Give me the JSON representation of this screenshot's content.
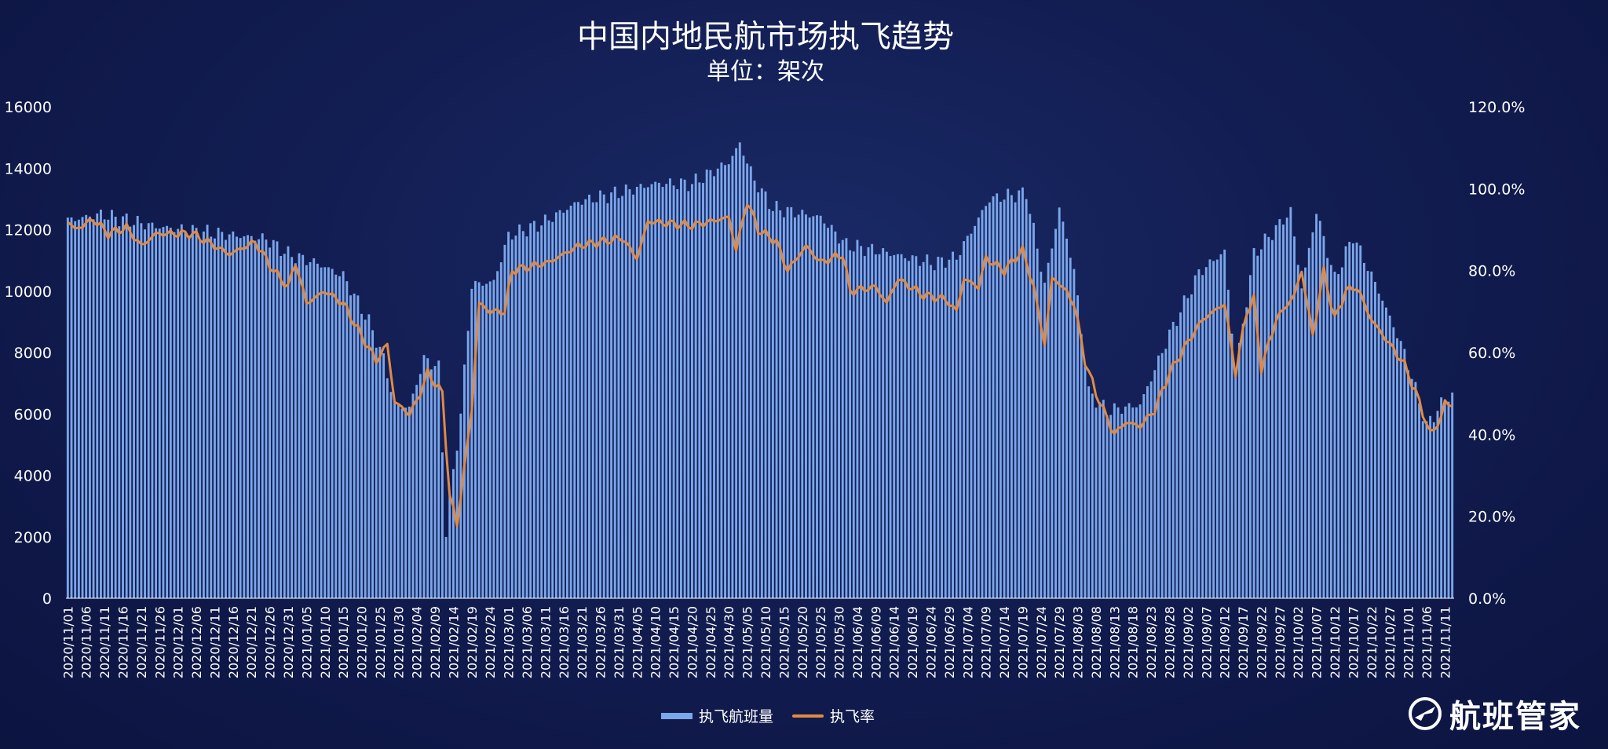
{
  "title": "中国内地民航市场执飞趋势",
  "subtitle": "单位：架次",
  "brand": "航班管家",
  "legend": {
    "bar": "执飞航班量",
    "line": "执飞率"
  },
  "colors": {
    "bar": "#7aa6ea",
    "line": "#e08a45",
    "text": "#ffffff"
  },
  "chart_data": {
    "type": "bar+line",
    "start_date": "2020/11/01",
    "end_date": "2021/11/13",
    "x_tick_labels": [
      "2020/11/01",
      "2020/11/06",
      "2020/11/11",
      "2020/11/16",
      "2020/11/21",
      "2020/11/26",
      "2020/12/01",
      "2020/12/06",
      "2020/12/11",
      "2020/12/16",
      "2020/12/21",
      "2020/12/26",
      "2020/12/31",
      "2021/01/05",
      "2021/01/10",
      "2021/01/15",
      "2021/01/20",
      "2021/01/25",
      "2021/01/30",
      "2021/02/04",
      "2021/02/09",
      "2021/02/14",
      "2021/02/19",
      "2021/02/24",
      "2021/03/01",
      "2021/03/06",
      "2021/03/11",
      "2021/03/16",
      "2021/03/21",
      "2021/03/26",
      "2021/03/31",
      "2021/04/05",
      "2021/04/10",
      "2021/04/15",
      "2021/04/20",
      "2021/04/25",
      "2021/04/30",
      "2021/05/05",
      "2021/05/10",
      "2021/05/15",
      "2021/05/20",
      "2021/05/25",
      "2021/05/30",
      "2021/06/04",
      "2021/06/09",
      "2021/06/14",
      "2021/06/19",
      "2021/06/24",
      "2021/06/29",
      "2021/07/04",
      "2021/07/09",
      "2021/07/14",
      "2021/07/19",
      "2021/07/24",
      "2021/07/29",
      "2021/08/03",
      "2021/08/08",
      "2021/08/13",
      "2021/08/18",
      "2021/08/23",
      "2021/08/28",
      "2021/09/02",
      "2021/09/07",
      "2021/09/12",
      "2021/09/17",
      "2021/09/22",
      "2021/09/27",
      "2021/10/02",
      "2021/10/07",
      "2021/10/12",
      "2021/10/17",
      "2021/10/22",
      "2021/10/27",
      "2021/11/01",
      "2021/11/06",
      "2021/11/11"
    ],
    "y_left": {
      "min": 0,
      "max": 16000,
      "ticks": [
        "0",
        "2000",
        "4000",
        "6000",
        "8000",
        "10000",
        "12000",
        "14000",
        "16000"
      ]
    },
    "y_right": {
      "min": 0,
      "max": 1.2,
      "ticks": [
        "0.0%",
        "20.0%",
        "40.0%",
        "60.0%",
        "80.0%",
        "100.0%",
        "120.0%"
      ]
    },
    "series": [
      {
        "name": "执飞航班量",
        "type": "bar",
        "axis": "left",
        "anchors": [
          [
            "2020/11/01",
            12300
          ],
          [
            "2020/11/10",
            12500
          ],
          [
            "2020/11/25",
            12100
          ],
          [
            "2020/12/10",
            11900
          ],
          [
            "2020/12/25",
            11700
          ],
          [
            "2020/12/31",
            11200
          ],
          [
            "2021/01/08",
            10900
          ],
          [
            "2021/01/15",
            10500
          ],
          [
            "2021/01/22",
            9000
          ],
          [
            "2021/01/26",
            7800
          ],
          [
            "2021/01/29",
            6300
          ],
          [
            "2021/02/02",
            6200
          ],
          [
            "2021/02/06",
            7800
          ],
          [
            "2021/02/10",
            7500
          ],
          [
            "2021/02/12",
            2200
          ],
          [
            "2021/02/16",
            6000
          ],
          [
            "2021/02/19",
            10200
          ],
          [
            "2021/02/25",
            10300
          ],
          [
            "2021/03/01",
            11800
          ],
          [
            "2021/03/10",
            12200
          ],
          [
            "2021/03/20",
            12900
          ],
          [
            "2021/03/31",
            13200
          ],
          [
            "2021/04/10",
            13500
          ],
          [
            "2021/04/20",
            13500
          ],
          [
            "2021/04/30",
            14200
          ],
          [
            "2021/05/03",
            14800
          ],
          [
            "2021/05/07",
            13600
          ],
          [
            "2021/05/12",
            12700
          ],
          [
            "2021/05/25",
            12400
          ],
          [
            "2021/06/01",
            11500
          ],
          [
            "2021/06/10",
            11300
          ],
          [
            "2021/06/25",
            10900
          ],
          [
            "2021/07/01",
            11100
          ],
          [
            "2021/07/10",
            13000
          ],
          [
            "2021/07/20",
            13200
          ],
          [
            "2021/07/25",
            10200
          ],
          [
            "2021/07/29",
            12700
          ],
          [
            "2021/08/02",
            10700
          ],
          [
            "2021/08/06",
            6700
          ],
          [
            "2021/08/11",
            6100
          ],
          [
            "2021/08/20",
            6300
          ],
          [
            "2021/08/28",
            8600
          ],
          [
            "2021/09/05",
            10600
          ],
          [
            "2021/09/12",
            11300
          ],
          [
            "2021/09/15",
            7400
          ],
          [
            "2021/09/20",
            11200
          ],
          [
            "2021/09/30",
            12600
          ],
          [
            "2021/10/03",
            10100
          ],
          [
            "2021/10/07",
            12600
          ],
          [
            "2021/10/12",
            10400
          ],
          [
            "2021/10/17",
            11800
          ],
          [
            "2021/10/24",
            10000
          ],
          [
            "2021/10/31",
            8000
          ],
          [
            "2021/11/06",
            5600
          ],
          [
            "2021/11/11",
            6500
          ],
          [
            "2021/11/13",
            6600
          ]
        ]
      },
      {
        "name": "执飞率",
        "type": "line",
        "axis": "right",
        "anchors": [
          [
            "2020/11/01",
            0.92
          ],
          [
            "2020/11/03",
            0.9
          ],
          [
            "2020/11/08",
            0.925
          ],
          [
            "2020/11/12",
            0.89
          ],
          [
            "2020/11/17",
            0.905
          ],
          [
            "2020/11/21",
            0.86
          ],
          [
            "2020/11/25",
            0.89
          ],
          [
            "2020/12/05",
            0.89
          ],
          [
            "2020/12/15",
            0.84
          ],
          [
            "2020/12/22",
            0.87
          ],
          [
            "2020/12/27",
            0.8
          ],
          [
            "2020/12/31",
            0.76
          ],
          [
            "2021/01/02",
            0.82
          ],
          [
            "2021/01/05",
            0.72
          ],
          [
            "2021/01/10",
            0.75
          ],
          [
            "2021/01/15",
            0.72
          ],
          [
            "2021/01/20",
            0.64
          ],
          [
            "2021/01/24",
            0.58
          ],
          [
            "2021/01/27",
            0.62
          ],
          [
            "2021/01/29",
            0.48
          ],
          [
            "2021/02/02",
            0.45
          ],
          [
            "2021/02/04",
            0.48
          ],
          [
            "2021/02/07",
            0.55
          ],
          [
            "2021/02/11",
            0.5
          ],
          [
            "2021/02/13",
            0.25
          ],
          [
            "2021/02/15",
            0.18
          ],
          [
            "2021/02/19",
            0.46
          ],
          [
            "2021/02/21",
            0.72
          ],
          [
            "2021/02/24",
            0.7
          ],
          [
            "2021/02/28",
            0.7
          ],
          [
            "2021/03/02",
            0.8
          ],
          [
            "2021/03/12",
            0.82
          ],
          [
            "2021/03/20",
            0.86
          ],
          [
            "2021/04/01",
            0.88
          ],
          [
            "2021/04/05",
            0.83
          ],
          [
            "2021/04/08",
            0.92
          ],
          [
            "2021/04/20",
            0.91
          ],
          [
            "2021/04/30",
            0.93
          ],
          [
            "2021/05/02",
            0.85
          ],
          [
            "2021/05/05",
            0.97
          ],
          [
            "2021/05/08",
            0.9
          ],
          [
            "2021/05/13",
            0.87
          ],
          [
            "2021/05/16",
            0.8
          ],
          [
            "2021/05/21",
            0.86
          ],
          [
            "2021/05/25",
            0.82
          ],
          [
            "2021/05/31",
            0.84
          ],
          [
            "2021/06/02",
            0.75
          ],
          [
            "2021/06/09",
            0.76
          ],
          [
            "2021/06/12",
            0.72
          ],
          [
            "2021/06/15",
            0.78
          ],
          [
            "2021/06/22",
            0.74
          ],
          [
            "2021/06/28",
            0.73
          ],
          [
            "2021/07/01",
            0.7
          ],
          [
            "2021/07/03",
            0.78
          ],
          [
            "2021/07/07",
            0.76
          ],
          [
            "2021/07/09",
            0.83
          ],
          [
            "2021/07/14",
            0.8
          ],
          [
            "2021/07/19",
            0.85
          ],
          [
            "2021/07/22",
            0.76
          ],
          [
            "2021/07/25",
            0.62
          ],
          [
            "2021/07/27",
            0.78
          ],
          [
            "2021/07/29",
            0.77
          ],
          [
            "2021/08/02",
            0.72
          ],
          [
            "2021/08/05",
            0.58
          ],
          [
            "2021/08/08",
            0.5
          ],
          [
            "2021/08/13",
            0.4
          ],
          [
            "2021/08/16",
            0.43
          ],
          [
            "2021/08/20",
            0.42
          ],
          [
            "2021/08/24",
            0.46
          ],
          [
            "2021/08/28",
            0.55
          ],
          [
            "2021/09/03",
            0.64
          ],
          [
            "2021/09/06",
            0.68
          ],
          [
            "2021/09/12",
            0.72
          ],
          [
            "2021/09/15",
            0.55
          ],
          [
            "2021/09/18",
            0.7
          ],
          [
            "2021/09/20",
            0.73
          ],
          [
            "2021/09/22",
            0.56
          ],
          [
            "2021/09/26",
            0.68
          ],
          [
            "2021/10/01",
            0.74
          ],
          [
            "2021/10/03",
            0.8
          ],
          [
            "2021/10/06",
            0.64
          ],
          [
            "2021/10/09",
            0.8
          ],
          [
            "2021/10/12",
            0.68
          ],
          [
            "2021/10/15",
            0.75
          ],
          [
            "2021/10/18",
            0.76
          ],
          [
            "2021/10/22",
            0.68
          ],
          [
            "2021/10/27",
            0.62
          ],
          [
            "2021/10/31",
            0.57
          ],
          [
            "2021/11/04",
            0.48
          ],
          [
            "2021/11/07",
            0.4
          ],
          [
            "2021/11/10",
            0.44
          ],
          [
            "2021/11/11",
            0.48
          ],
          [
            "2021/11/13",
            0.47
          ]
        ]
      }
    ],
    "grid": false,
    "legend_position": "bottom-center"
  }
}
